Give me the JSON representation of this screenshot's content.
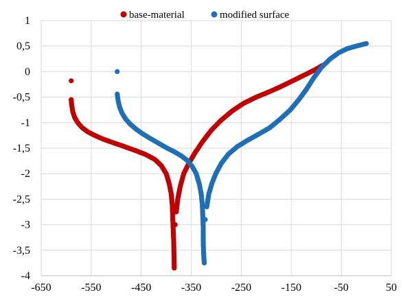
{
  "chart_data": {
    "type": "scatter",
    "title": "",
    "xlabel": "",
    "ylabel": "",
    "xlim": [
      -650,
      50
    ],
    "ylim": [
      -4,
      1
    ],
    "xticks": [
      "-650",
      "-550",
      "-450",
      "-350",
      "-250",
      "-150",
      "-50",
      "50"
    ],
    "yticks": [
      "1",
      "0,5",
      "0",
      "-0,5",
      "-1",
      "-1,5",
      "-2",
      "-2,5",
      "-3",
      "-3,5",
      "-4"
    ],
    "grid": true,
    "legend_position": "top",
    "series": [
      {
        "name": "base-material",
        "color": "#c00000",
        "cathodic": [
          [
            -590,
            -0.18
          ],
          [
            -590,
            -0.55
          ],
          [
            -589,
            -0.65
          ],
          [
            -587,
            -0.78
          ],
          [
            -583,
            -0.9
          ],
          [
            -577,
            -1.0
          ],
          [
            -568,
            -1.1
          ],
          [
            -557,
            -1.18
          ],
          [
            -543,
            -1.25
          ],
          [
            -527,
            -1.32
          ],
          [
            -510,
            -1.38
          ],
          [
            -492,
            -1.44
          ],
          [
            -475,
            -1.5
          ],
          [
            -458,
            -1.56
          ],
          [
            -440,
            -1.63
          ],
          [
            -423,
            -1.72
          ],
          [
            -410,
            -1.84
          ],
          [
            -400,
            -2.0
          ],
          [
            -394,
            -2.2
          ],
          [
            -390,
            -2.4
          ],
          [
            -388,
            -2.6
          ],
          [
            -387,
            -2.85
          ],
          [
            -386,
            -3.1
          ],
          [
            -385,
            -3.35
          ],
          [
            -384,
            -3.85
          ]
        ],
        "anodic": [
          [
            -382,
            -3.0
          ],
          [
            -380,
            -2.75
          ],
          [
            -377,
            -2.5
          ],
          [
            -372,
            -2.25
          ],
          [
            -365,
            -2.0
          ],
          [
            -355,
            -1.8
          ],
          [
            -343,
            -1.6
          ],
          [
            -328,
            -1.38
          ],
          [
            -310,
            -1.15
          ],
          [
            -290,
            -0.95
          ],
          [
            -268,
            -0.77
          ],
          [
            -245,
            -0.62
          ],
          [
            -220,
            -0.5
          ],
          [
            -195,
            -0.4
          ],
          [
            -170,
            -0.29
          ],
          [
            -145,
            -0.17
          ],
          [
            -120,
            -0.05
          ],
          [
            -100,
            0.05
          ],
          [
            -88,
            0.12
          ]
        ]
      },
      {
        "name": "modified surface",
        "color": "#1f6fb5",
        "cathodic": [
          [
            -498,
            0.0
          ],
          [
            -498,
            -0.44
          ],
          [
            -496,
            -0.58
          ],
          [
            -493,
            -0.7
          ],
          [
            -488,
            -0.82
          ],
          [
            -481,
            -0.93
          ],
          [
            -472,
            -1.03
          ],
          [
            -460,
            -1.13
          ],
          [
            -447,
            -1.22
          ],
          [
            -432,
            -1.31
          ],
          [
            -416,
            -1.4
          ],
          [
            -400,
            -1.49
          ],
          [
            -384,
            -1.57
          ],
          [
            -370,
            -1.65
          ],
          [
            -358,
            -1.74
          ],
          [
            -348,
            -1.86
          ],
          [
            -340,
            -2.0
          ],
          [
            -334,
            -2.2
          ],
          [
            -330,
            -2.4
          ],
          [
            -328,
            -2.6
          ],
          [
            -327,
            -2.8
          ],
          [
            -326,
            -3.05
          ],
          [
            -326,
            -3.35
          ],
          [
            -325,
            -3.6
          ],
          [
            -324,
            -3.75
          ]
        ],
        "anodic": [
          [
            -322,
            -2.9
          ],
          [
            -319,
            -2.65
          ],
          [
            -315,
            -2.4
          ],
          [
            -309,
            -2.2
          ],
          [
            -301,
            -2.0
          ],
          [
            -290,
            -1.8
          ],
          [
            -276,
            -1.62
          ],
          [
            -258,
            -1.47
          ],
          [
            -238,
            -1.35
          ],
          [
            -216,
            -1.23
          ],
          [
            -193,
            -1.1
          ],
          [
            -172,
            -0.93
          ],
          [
            -152,
            -0.75
          ],
          [
            -135,
            -0.55
          ],
          [
            -120,
            -0.35
          ],
          [
            -105,
            -0.12
          ],
          [
            -90,
            0.08
          ],
          [
            -72,
            0.25
          ],
          [
            -55,
            0.37
          ],
          [
            -38,
            0.45
          ],
          [
            -20,
            0.5
          ],
          [
            -8,
            0.53
          ],
          [
            0,
            0.55
          ]
        ]
      }
    ]
  }
}
